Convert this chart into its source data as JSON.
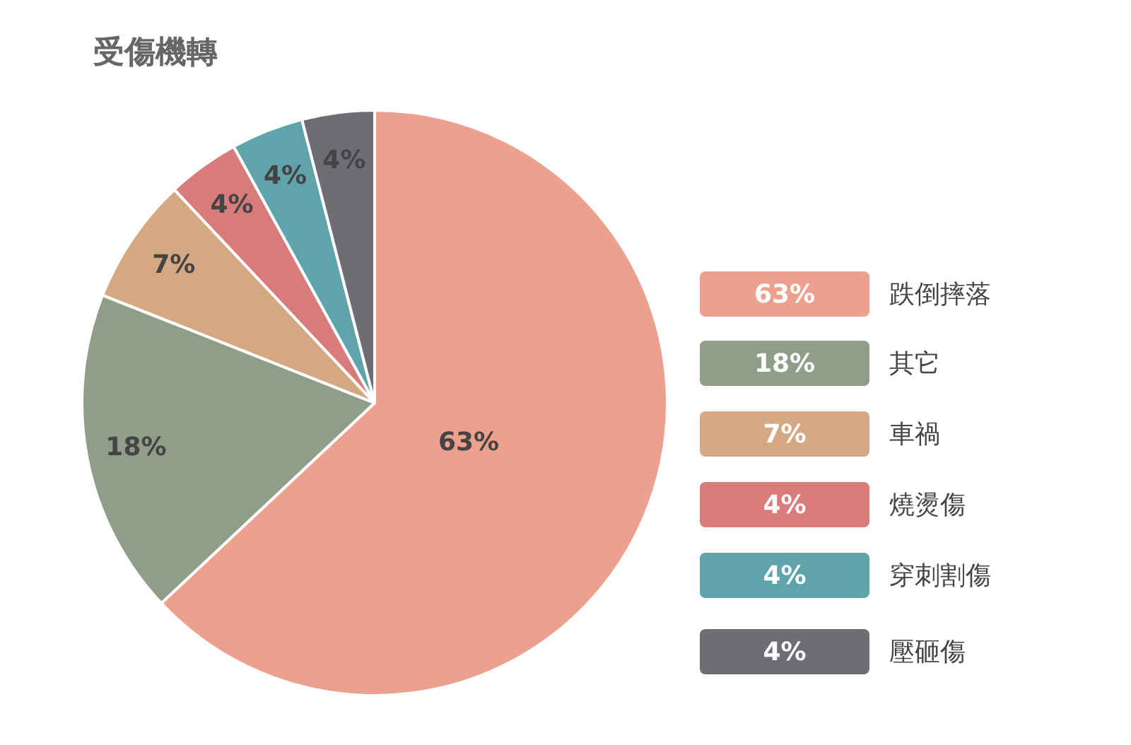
{
  "chart_data": {
    "type": "pie",
    "title": "受傷機轉",
    "categories": [
      "跌倒摔落",
      "其它",
      "車禍",
      "燒燙傷",
      "穿刺割傷",
      "壓砸傷"
    ],
    "values": [
      63,
      18,
      7,
      4,
      4,
      4
    ],
    "value_labels": [
      "63%",
      "18%",
      "7%",
      "4%",
      "4%",
      "4%"
    ],
    "colors": [
      "#eea08e",
      "#909d88",
      "#d4a882",
      "#d97b7b",
      "#5fa3ab",
      "#6d6e73"
    ],
    "legend": "right"
  }
}
